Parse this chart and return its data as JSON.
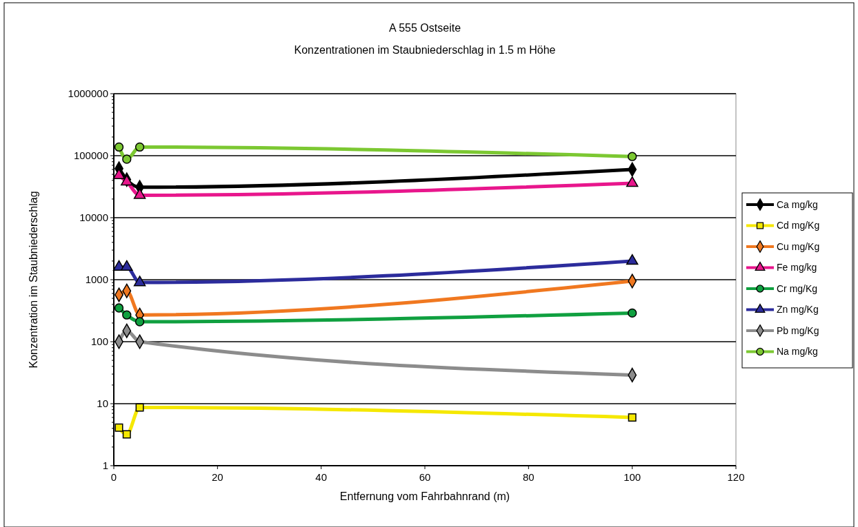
{
  "chart_data": {
    "type": "line",
    "title": "A 555 Ostseite",
    "subtitle": "Konzentrationen im Staubniederschlag in 1.5 m Höhe",
    "xlabel": "Entfernung vom Fahrbahnrand (m)",
    "ylabel": "Konzentration im Staubniederschlag",
    "x": [
      1,
      2.5,
      5,
      100
    ],
    "xlim": [
      0,
      120
    ],
    "xticks": [
      0,
      20,
      40,
      60,
      80,
      100,
      120
    ],
    "ylim": [
      1,
      1000000
    ],
    "yticks": [
      1,
      10,
      100,
      1000,
      10000,
      100000,
      1000000
    ],
    "log": "y",
    "grid": "y",
    "legend": "right",
    "line_style": "solid",
    "series": [
      {
        "name": "Ca mg/kg",
        "color": "#000000",
        "marker": "diamond",
        "values": [
          62000,
          41000,
          31000,
          60000
        ]
      },
      {
        "name": "Cd mg/Kg",
        "color": "#f5e800",
        "marker": "square",
        "values": [
          4.1,
          3.2,
          8.7,
          6.0
        ]
      },
      {
        "name": "Cu mg/Kg",
        "color": "#f07820",
        "marker": "diamond",
        "values": [
          570,
          660,
          270,
          950
        ]
      },
      {
        "name": "Fe mg/kg",
        "color": "#e8168c",
        "marker": "triangle",
        "values": [
          48000,
          38000,
          23000,
          36000
        ]
      },
      {
        "name": "Cr mg/Kg",
        "color": "#10a040",
        "marker": "circle",
        "values": [
          350,
          270,
          210,
          290
        ]
      },
      {
        "name": "Zn mg/Kg",
        "color": "#2c2c9c",
        "marker": "triangle",
        "values": [
          1600,
          1600,
          900,
          2000
        ]
      },
      {
        "name": "Pb mg/Kg",
        "color": "#8c8c8c",
        "marker": "diamond",
        "values": [
          100,
          150,
          100,
          29
        ]
      },
      {
        "name": "Na mg/kg",
        "color": "#7cc832",
        "marker": "circle",
        "values": [
          138000,
          88000,
          138000,
          97000
        ]
      }
    ]
  }
}
